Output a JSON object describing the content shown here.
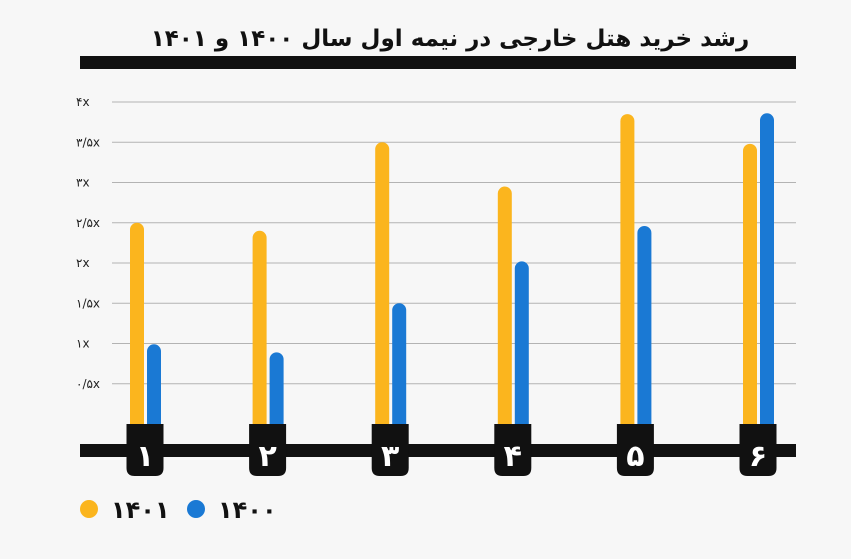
{
  "chart_data": {
    "type": "bar",
    "title": "رشد خرید هتل خارجی در نیمه اول سال ۱۴۰۰ و ۱۴۰۱",
    "categories": [
      "۱",
      "۲",
      "۳",
      "۴",
      "۵",
      "۶"
    ],
    "series": [
      {
        "name": "۱۴۰۱",
        "color": "#fbb51e",
        "values": [
          2.5,
          2.4,
          3.5,
          2.95,
          3.85,
          3.48
        ]
      },
      {
        "name": "۱۴۰۰",
        "color": "#1a79d4",
        "values": [
          0.99,
          0.89,
          1.5,
          2.02,
          2.46,
          3.86
        ]
      }
    ],
    "yticks": [
      {
        "value": 0.5,
        "label": "۰/۵x"
      },
      {
        "value": 1,
        "label": "۱x"
      },
      {
        "value": 1.5,
        "label": "۱/۵x"
      },
      {
        "value": 2,
        "label": "۲x"
      },
      {
        "value": 2.5,
        "label": "۲/۵x"
      },
      {
        "value": 3,
        "label": "۳x"
      },
      {
        "value": 3.5,
        "label": "۳/۵x"
      },
      {
        "value": 4,
        "label": "۴x"
      }
    ],
    "ylim": [
      0,
      4
    ],
    "grid": true,
    "legend_position": "bottom-left",
    "xlabel": "",
    "ylabel": ""
  }
}
